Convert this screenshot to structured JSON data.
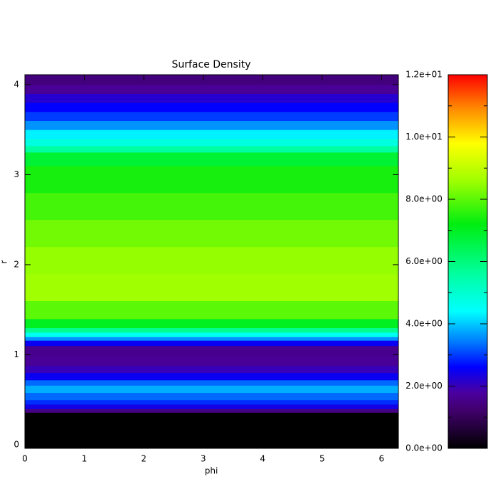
{
  "chart_data": {
    "type": "heatmap",
    "title": "Surface Density",
    "xlabel": "phi",
    "ylabel": "r",
    "xlim": [
      0,
      6.283
    ],
    "xticks": [
      0,
      1,
      2,
      3,
      4,
      5,
      6
    ],
    "ylim": [
      -0.04,
      4.11
    ],
    "yticks": [
      0,
      1,
      2,
      3,
      4
    ],
    "r_edges": [
      -0.04,
      0.36,
      0.4,
      0.45,
      0.5,
      0.58,
      0.66,
      0.72,
      0.8,
      0.88,
      0.98,
      1.1,
      1.16,
      1.2,
      1.25,
      1.3,
      1.4,
      1.6,
      1.9,
      2.2,
      2.5,
      2.8,
      3.1,
      3.25,
      3.32,
      3.4,
      3.5,
      3.6,
      3.7,
      3.8,
      3.9,
      4.0,
      4.11
    ],
    "values": [
      0,
      1.5,
      2.4,
      2.9,
      3.3,
      3.8,
      3.3,
      2.5,
      2.0,
      1.7,
      1.6,
      2.5,
      3.6,
      4.6,
      5.8,
      7.0,
      8.0,
      8.6,
      8.5,
      8.2,
      7.8,
      7.4,
      6.8,
      5.6,
      4.8,
      4.3,
      3.6,
      3.0,
      2.6,
      2.2,
      1.7,
      1.4
    ],
    "clim": [
      0,
      12
    ],
    "cticks": [
      {
        "value": 0,
        "label": "0.0e+00"
      },
      {
        "value": 2,
        "label": "2.0e+00"
      },
      {
        "value": 4,
        "label": "4.0e+00"
      },
      {
        "value": 6,
        "label": "6.0e+00"
      },
      {
        "value": 8,
        "label": "8.0e+00"
      },
      {
        "value": 10,
        "label": "1.0e+01"
      },
      {
        "value": 12,
        "label": "1.2e+01"
      }
    ],
    "cminor": [
      1,
      3,
      5,
      7,
      9,
      11
    ],
    "colormap": [
      {
        "value": 0,
        "color": "#000000"
      },
      {
        "value": 1.2,
        "color": "#40006a"
      },
      {
        "value": 1.8,
        "color": "#4a00a0"
      },
      {
        "value": 2.6,
        "color": "#0000ff"
      },
      {
        "value": 3.4,
        "color": "#0078ff"
      },
      {
        "value": 4.4,
        "color": "#00ffff"
      },
      {
        "value": 5.6,
        "color": "#00ffa0"
      },
      {
        "value": 7.2,
        "color": "#00ee10"
      },
      {
        "value": 8.6,
        "color": "#a0ff00"
      },
      {
        "value": 9.8,
        "color": "#ffff00"
      },
      {
        "value": 11,
        "color": "#ff8000"
      },
      {
        "value": 12,
        "color": "#ff0000"
      }
    ]
  }
}
